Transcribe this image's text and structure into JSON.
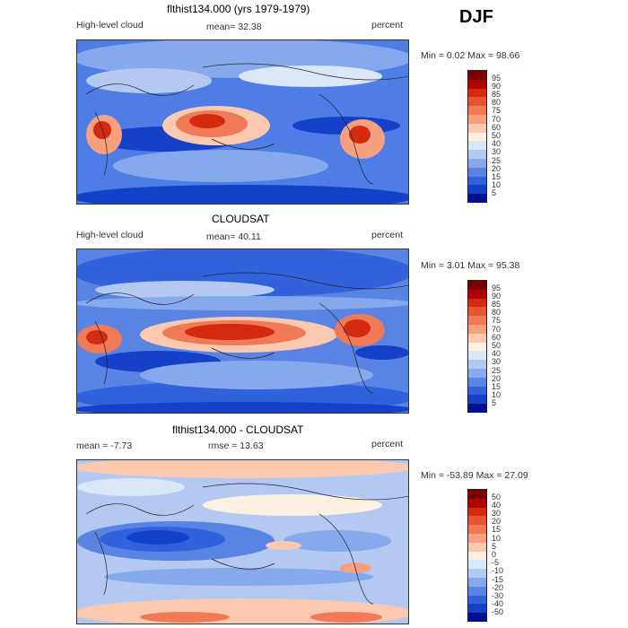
{
  "season": "DJF",
  "panels": [
    {
      "title": "flthist134.000 (yrs 1979-1979)",
      "left_label": "High-level cloud",
      "stat": "mean=  32.38",
      "units": "percent",
      "minmax": "Min =   0.02 Max =  98.66",
      "levels": [
        "95",
        "90",
        "85",
        "80",
        "75",
        "70",
        "60",
        "50",
        "40",
        "30",
        "25",
        "20",
        "15",
        "10",
        "5"
      ]
    },
    {
      "title": "CLOUDSAT",
      "left_label": "High-level cloud",
      "stat": "mean=  40.11",
      "units": "percent",
      "minmax": "Min =   3.01 Max =  95.38",
      "levels": [
        "95",
        "90",
        "85",
        "80",
        "75",
        "70",
        "60",
        "50",
        "40",
        "30",
        "25",
        "20",
        "15",
        "10",
        "5"
      ]
    },
    {
      "title": "flthist134.000 - CLOUDSAT",
      "left_label": "mean =   -7.73",
      "stat": "rmse =  13.63",
      "units": "percent",
      "minmax": "Min = -53.89 Max =  27.09",
      "levels": [
        "50",
        "40",
        "30",
        "20",
        "15",
        "10",
        "5",
        "0",
        "-5",
        "-10",
        "-15",
        "-20",
        "-30",
        "-40",
        "-50"
      ]
    }
  ],
  "colors": {
    "abs_scale": [
      "#7a0000",
      "#b00000",
      "#d42a10",
      "#e8542e",
      "#f07a56",
      "#f6a080",
      "#fbc8b0",
      "#fdf0e0",
      "#dbe6f7",
      "#b3c9f2",
      "#86a8ec",
      "#5a84e4",
      "#3262db",
      "#1540c8",
      "#00108e"
    ],
    "diff_scale": [
      "#7a0000",
      "#b00000",
      "#d42a10",
      "#e8542e",
      "#f07a56",
      "#f6a080",
      "#fbc8b0",
      "#fdf0e0",
      "#dbe6f7",
      "#b3c9f2",
      "#86a8ec",
      "#5a84e4",
      "#3262db",
      "#1540c8",
      "#00108e"
    ]
  }
}
